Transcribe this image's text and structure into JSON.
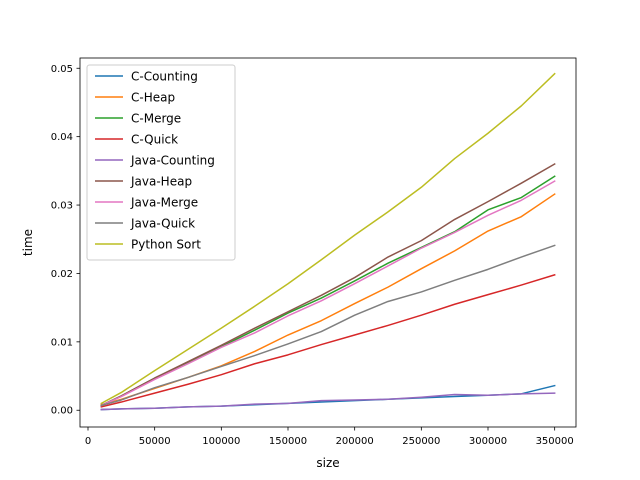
{
  "chart_data": {
    "type": "line",
    "title": "",
    "xlabel": "size",
    "ylabel": "time",
    "xlim": [
      -6000,
      366000
    ],
    "ylim": [
      -0.00245,
      0.0515
    ],
    "x_ticks": [
      0,
      50000,
      100000,
      150000,
      200000,
      250000,
      300000,
      350000
    ],
    "x_tick_labels": [
      "0",
      "50000",
      "100000",
      "150000",
      "200000",
      "250000",
      "300000",
      "350000"
    ],
    "y_ticks": [
      0,
      0.01,
      0.02,
      0.03,
      0.04,
      0.05
    ],
    "y_tick_labels": [
      "0.00",
      "0.01",
      "0.02",
      "0.03",
      "0.04",
      "0.05"
    ],
    "grid": false,
    "legend_position": "upper-left",
    "x": [
      10000,
      25000,
      50000,
      75000,
      100000,
      125000,
      150000,
      175000,
      200000,
      225000,
      250000,
      275000,
      300000,
      325000,
      350000
    ],
    "series": [
      {
        "name": "C-Counting",
        "color": "#1f77b4",
        "values": [
          0.0001,
          0.0002,
          0.0003,
          0.0005,
          0.0006,
          0.0008,
          0.001,
          0.0012,
          0.0014,
          0.0016,
          0.0018,
          0.002,
          0.0022,
          0.0024,
          0.0036
        ]
      },
      {
        "name": "C-Heap",
        "color": "#ff7f0e",
        "values": [
          0.0008,
          0.0016,
          0.0032,
          0.0048,
          0.0065,
          0.0086,
          0.011,
          0.0131,
          0.0156,
          0.018,
          0.0207,
          0.0233,
          0.0262,
          0.0283,
          0.0316
        ]
      },
      {
        "name": "C-Merge",
        "color": "#2ca02c",
        "values": [
          0.0007,
          0.0021,
          0.0047,
          0.007,
          0.0093,
          0.0117,
          0.0142,
          0.0164,
          0.0189,
          0.0215,
          0.0238,
          0.0261,
          0.0293,
          0.0311,
          0.0342
        ]
      },
      {
        "name": "C-Quick",
        "color": "#d62728",
        "values": [
          0.0005,
          0.0012,
          0.0025,
          0.0038,
          0.0052,
          0.0068,
          0.0081,
          0.0096,
          0.011,
          0.0124,
          0.0139,
          0.0155,
          0.0169,
          0.0183,
          0.0198
        ]
      },
      {
        "name": "Java-Counting",
        "color": "#9467bd",
        "values": [
          0.0001,
          0.0002,
          0.0003,
          0.0005,
          0.0006,
          0.0009,
          0.001,
          0.0014,
          0.0015,
          0.0016,
          0.0019,
          0.0023,
          0.0022,
          0.0024,
          0.0025
        ]
      },
      {
        "name": "Java-Heap",
        "color": "#8c564b",
        "values": [
          0.0007,
          0.0021,
          0.0047,
          0.0071,
          0.0095,
          0.012,
          0.0144,
          0.0168,
          0.0194,
          0.0224,
          0.0248,
          0.0279,
          0.0305,
          0.0332,
          0.036
        ]
      },
      {
        "name": "Java-Merge",
        "color": "#e377c2",
        "values": [
          0.0007,
          0.002,
          0.0045,
          0.0068,
          0.0092,
          0.0113,
          0.0138,
          0.016,
          0.0185,
          0.0211,
          0.0237,
          0.026,
          0.0285,
          0.0307,
          0.0335
        ]
      },
      {
        "name": "Java-Quick",
        "color": "#7f7f7f",
        "values": [
          0.0007,
          0.0015,
          0.0033,
          0.0048,
          0.0064,
          0.008,
          0.0097,
          0.0115,
          0.0139,
          0.0159,
          0.0173,
          0.019,
          0.0206,
          0.0224,
          0.0241
        ]
      },
      {
        "name": "Python Sort",
        "color": "#bcbd22",
        "values": [
          0.001,
          0.0026,
          0.0058,
          0.0089,
          0.012,
          0.0152,
          0.0185,
          0.022,
          0.0256,
          0.029,
          0.0326,
          0.0368,
          0.0405,
          0.0445,
          0.0492
        ]
      }
    ]
  }
}
